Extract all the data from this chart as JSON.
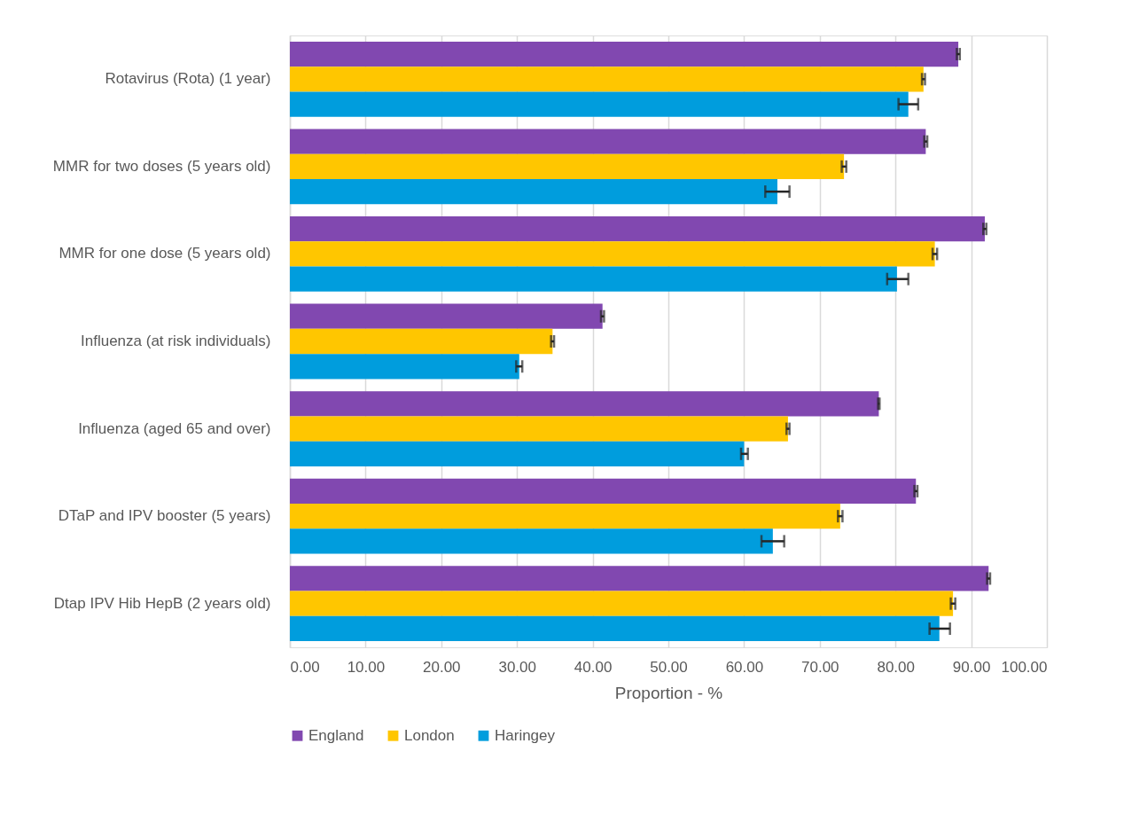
{
  "chart_data": {
    "type": "bar",
    "orientation": "horizontal",
    "xlabel": "Proportion - %",
    "categories": [
      "Rotavirus (Rota) (1 year)",
      "MMR for two doses (5 years old)",
      "MMR for one dose (5 years old)",
      "Influenza (at risk individuals)",
      "Influenza (aged 65 and over)",
      "DTaP and IPV booster (5 years)",
      "Dtap  IPV  Hib HepB (2 years old)"
    ],
    "series": [
      {
        "name": "England",
        "color": "#8148b0",
        "values": [
          88.3,
          84.0,
          91.8,
          41.3,
          77.8,
          82.7,
          92.3
        ],
        "errors": [
          [
            88.1,
            88.5
          ],
          [
            83.8,
            84.2
          ],
          [
            91.6,
            92.0
          ],
          [
            41.1,
            41.5
          ],
          [
            77.7,
            77.9
          ],
          [
            82.5,
            82.9
          ],
          [
            92.1,
            92.5
          ]
        ]
      },
      {
        "name": "London",
        "color": "#ffc600",
        "values": [
          83.7,
          73.2,
          85.2,
          34.7,
          65.8,
          72.7,
          87.6
        ],
        "errors": [
          [
            83.5,
            83.9
          ],
          [
            72.9,
            73.5
          ],
          [
            84.9,
            85.5
          ],
          [
            34.5,
            34.9
          ],
          [
            65.6,
            66.0
          ],
          [
            72.4,
            73.0
          ],
          [
            87.3,
            87.9
          ]
        ]
      },
      {
        "name": "Haringey",
        "color": "#009ddd",
        "values": [
          81.7,
          64.4,
          80.2,
          30.3,
          60.0,
          63.8,
          85.8
        ],
        "errors": [
          [
            80.4,
            83.0
          ],
          [
            62.8,
            66.0
          ],
          [
            78.9,
            81.7
          ],
          [
            29.9,
            30.7
          ],
          [
            59.6,
            60.5
          ],
          [
            62.3,
            65.3
          ],
          [
            84.5,
            87.2
          ]
        ]
      }
    ],
    "xlim": [
      0,
      100
    ],
    "xticks": [
      {
        "value": 0,
        "label": "0.00"
      },
      {
        "value": 10,
        "label": "10.00"
      },
      {
        "value": 20,
        "label": "20.00"
      },
      {
        "value": 30,
        "label": "30.00"
      },
      {
        "value": 40,
        "label": "40.00"
      },
      {
        "value": 50,
        "label": "50.00"
      },
      {
        "value": 60,
        "label": "60.00"
      },
      {
        "value": 70,
        "label": "70.00"
      },
      {
        "value": 80,
        "label": "80.00"
      },
      {
        "value": 90,
        "label": "90.00"
      },
      {
        "value": 100,
        "label": "100.00"
      }
    ],
    "grid": "x",
    "legend": "bottom"
  }
}
